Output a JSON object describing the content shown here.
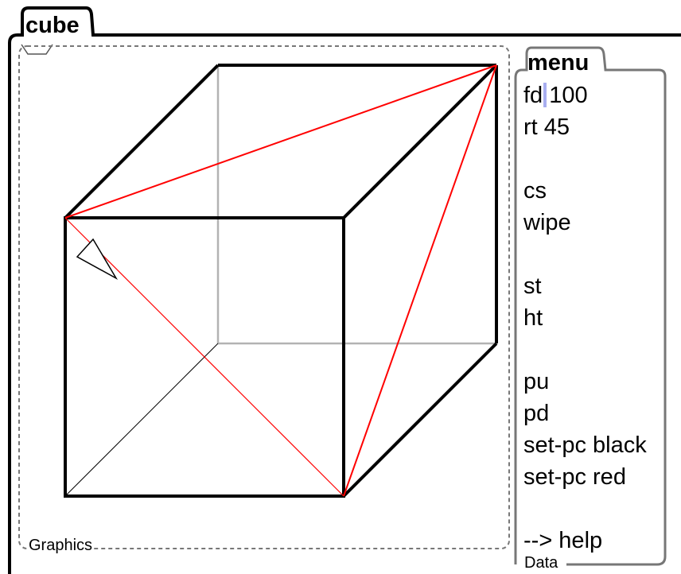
{
  "window": {
    "title": "cube"
  },
  "graphics": {
    "label": "Graphics"
  },
  "menu": {
    "title": "menu",
    "items": [
      "fd 100",
      "rt 45",
      "",
      "cs",
      "wipe",
      "",
      "st",
      "ht",
      "",
      "pu",
      "pd",
      "set-pc black",
      "set-pc red",
      "",
      "--> help"
    ],
    "box_label": "Data"
  },
  "colors": {
    "pen_red": "#ff0000",
    "pen_black": "#000000",
    "hidden_edge_gray": "#b3b3b3",
    "cursor": "#a8aef0",
    "frame": "#777777"
  }
}
